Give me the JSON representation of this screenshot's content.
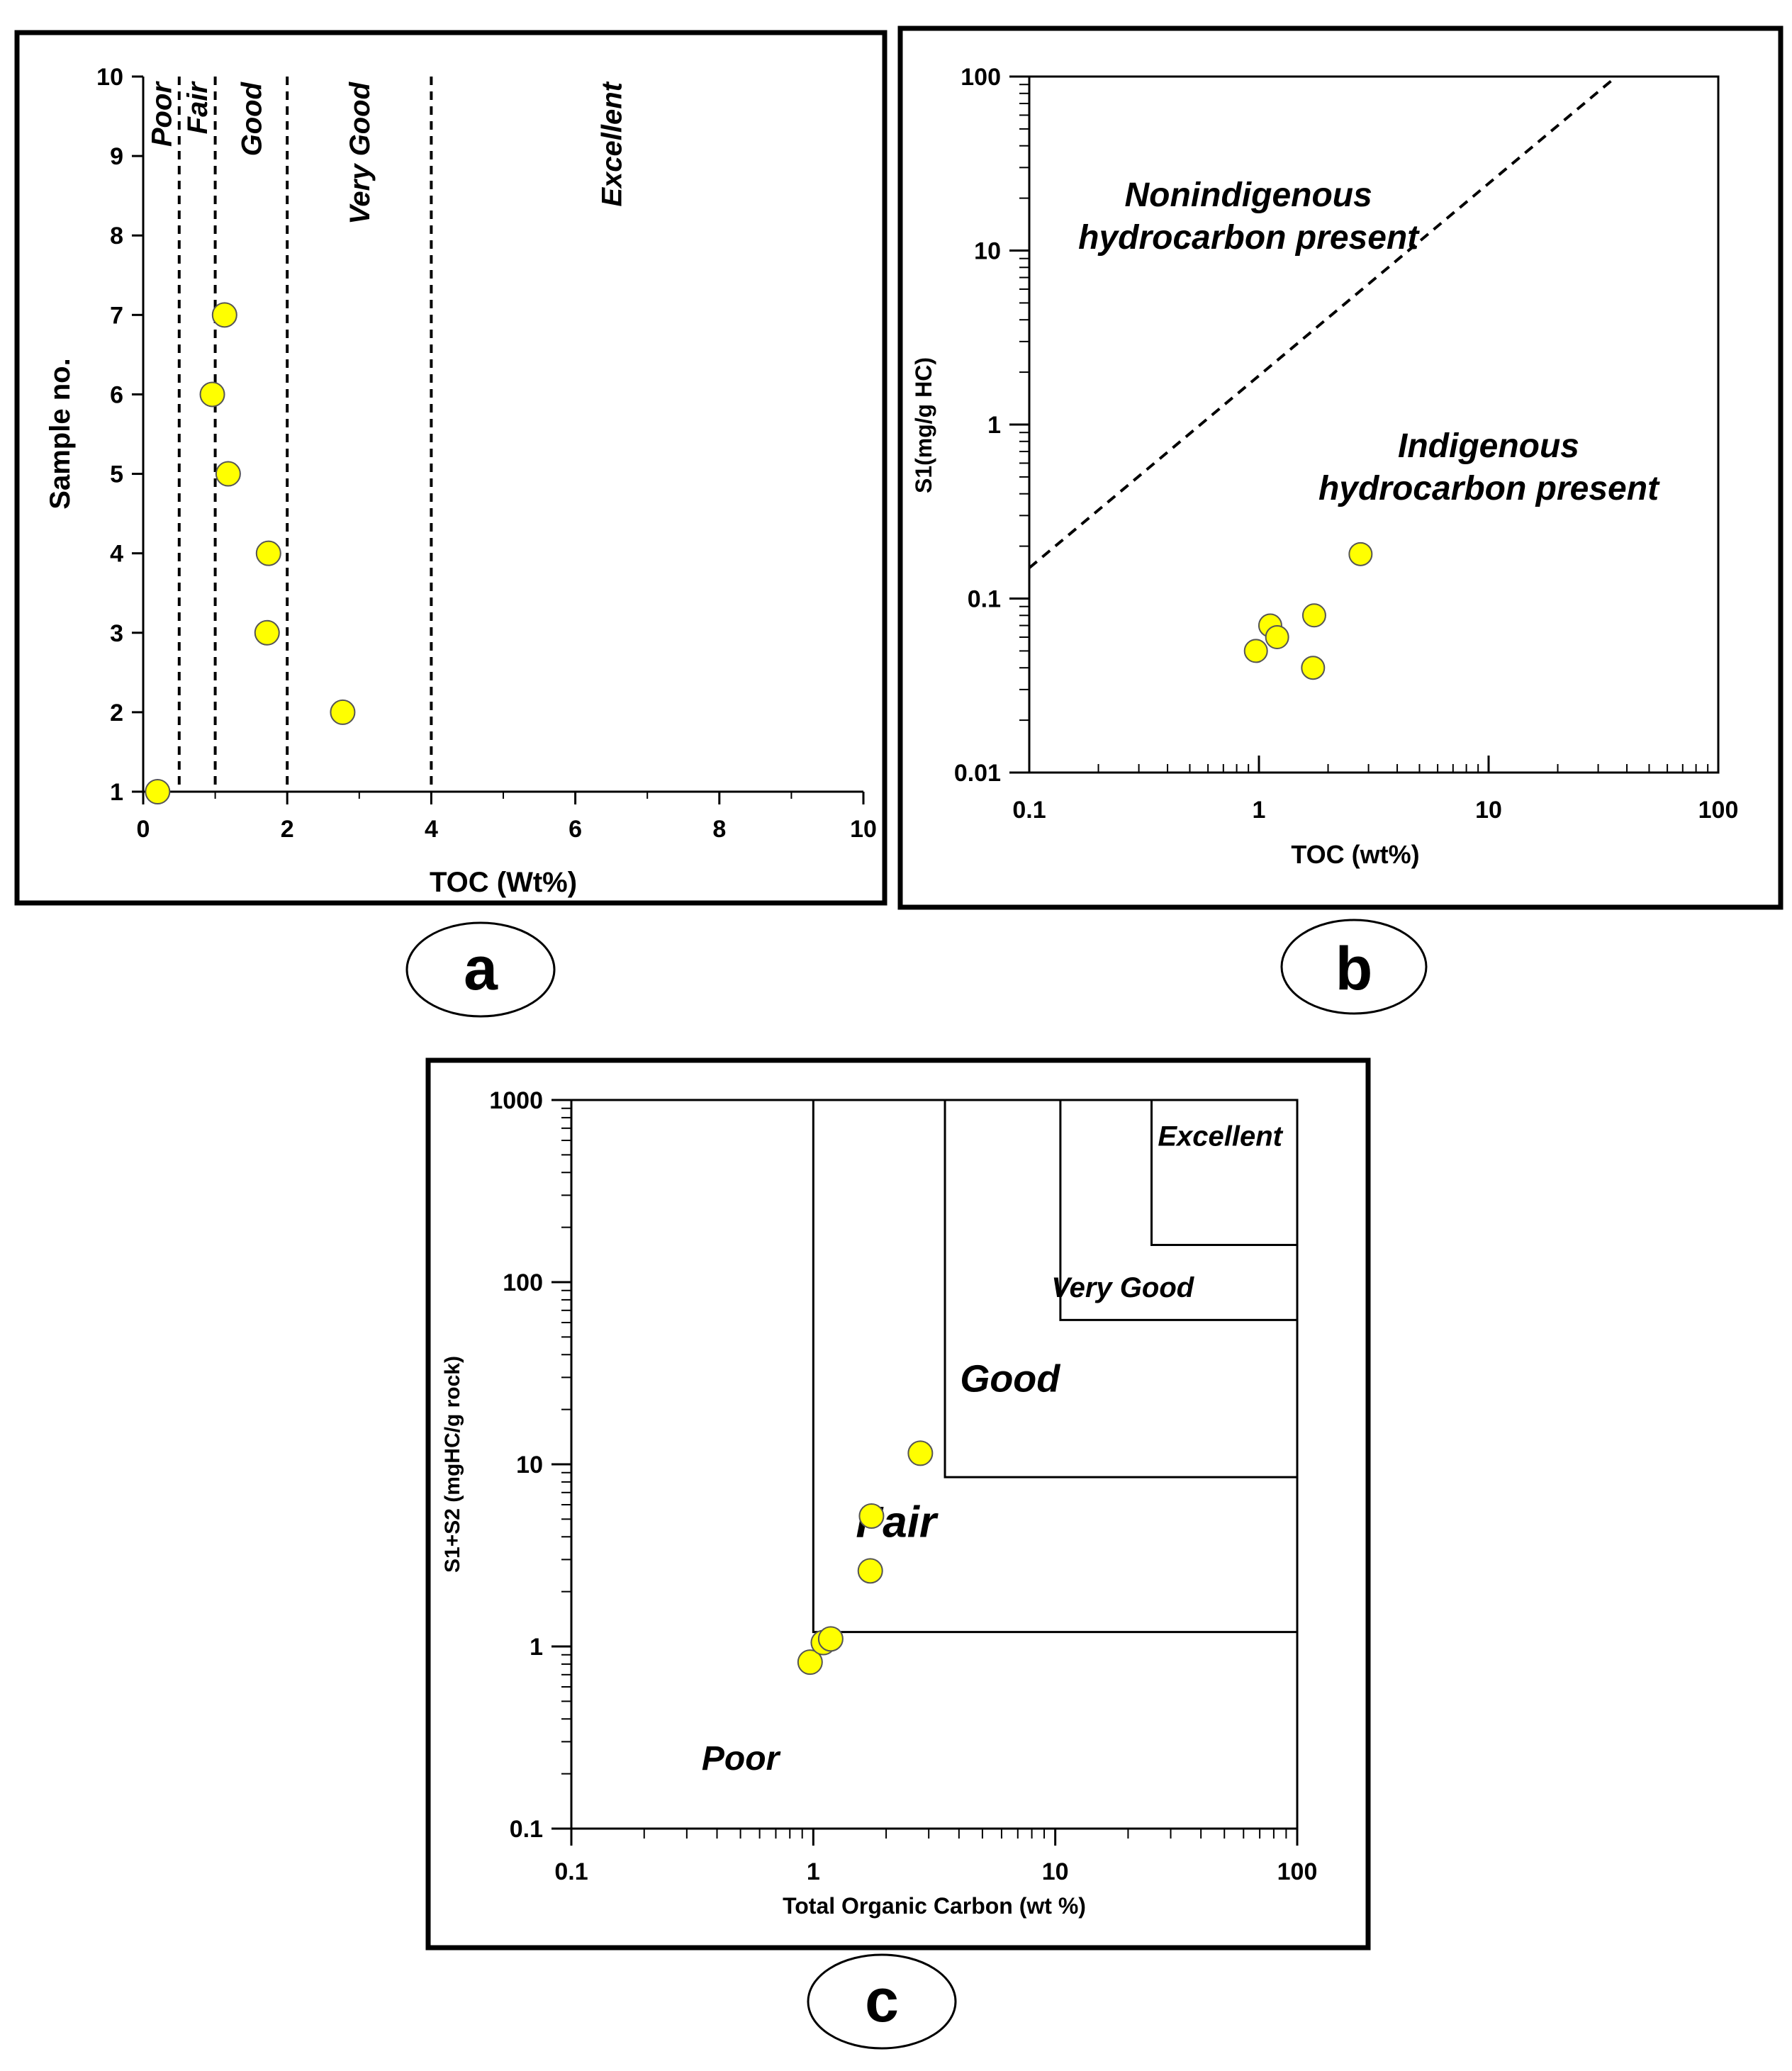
{
  "figure": {
    "panel_labels": [
      "a",
      "b",
      "c"
    ]
  },
  "chart_data": [
    {
      "id": "a",
      "type": "scatter",
      "title": "",
      "xlabel": "TOC (Wt%)",
      "ylabel": "Sample no.",
      "xlim": [
        0,
        10
      ],
      "ylim": [
        1,
        10
      ],
      "x_ticks": [
        "0",
        "2",
        "4",
        "6",
        "8",
        "10"
      ],
      "y_ticks": [
        "1",
        "2",
        "3",
        "4",
        "5",
        "6",
        "7",
        "8",
        "9",
        "10"
      ],
      "grid": false,
      "point_color": "#ffff00",
      "threshold_lines": [
        0.5,
        1,
        2,
        4
      ],
      "zones": [
        {
          "label": "Poor",
          "x": 0.25
        },
        {
          "label": "Fair",
          "x": 0.75
        },
        {
          "label": "Good",
          "x": 1.5
        },
        {
          "label": "Very Good",
          "x": 3
        },
        {
          "label": "Excellent",
          "x": 6.5
        }
      ],
      "points": [
        {
          "x": 0.2,
          "y": 1
        },
        {
          "x": 2.77,
          "y": 2
        },
        {
          "x": 1.72,
          "y": 3
        },
        {
          "x": 1.74,
          "y": 4
        },
        {
          "x": 1.18,
          "y": 5
        },
        {
          "x": 0.96,
          "y": 6
        },
        {
          "x": 1.13,
          "y": 7
        }
      ]
    },
    {
      "id": "b",
      "type": "scatter",
      "title": "",
      "xlabel": "TOC (wt%)",
      "ylabel": "S1(mg/g HC)",
      "xscale": "log",
      "yscale": "log",
      "xlim": [
        0.1,
        100
      ],
      "ylim": [
        0.01,
        100
      ],
      "x_ticks": [
        "0.1",
        "1",
        "10",
        "100"
      ],
      "y_ticks": [
        "0.01",
        "0.1",
        "1",
        "10",
        "100"
      ],
      "grid": false,
      "point_color": "#ffff00",
      "boundary_line": {
        "style": "dashed",
        "from": [
          0.1,
          0.15
        ],
        "to": [
          36,
          100
        ]
      },
      "annotations": [
        {
          "lines": [
            "Nonindigenous",
            "hydrocarbon present"
          ],
          "x": 0.9,
          "y": 18
        },
        {
          "lines": [
            "Indigenous",
            "hydrocarbon present"
          ],
          "x": 10,
          "y": 0.65
        }
      ],
      "points": [
        {
          "x": 0.97,
          "y": 0.05
        },
        {
          "x": 1.12,
          "y": 0.07
        },
        {
          "x": 1.2,
          "y": 0.06
        },
        {
          "x": 1.72,
          "y": 0.04
        },
        {
          "x": 1.74,
          "y": 0.08
        },
        {
          "x": 2.77,
          "y": 0.18
        }
      ]
    },
    {
      "id": "c",
      "type": "scatter",
      "title": "",
      "xlabel": "Total Organic Carbon (wt %)",
      "ylabel": "S1+S2 (mgHC/g rock)",
      "xscale": "log",
      "yscale": "log",
      "xlim": [
        0.1,
        100
      ],
      "ylim": [
        0.1,
        1000
      ],
      "x_ticks": [
        "0.1",
        "1",
        "10",
        "100"
      ],
      "y_ticks": [
        "0.1",
        "1",
        "10",
        "100",
        "1000"
      ],
      "grid": false,
      "point_color": "#ffff00",
      "zones": [
        {
          "label": "Excellent",
          "x0": 25,
          "y0": 160,
          "lx": 48,
          "ly": 560,
          "size": 40
        },
        {
          "label": "Very Good",
          "x0": 10.5,
          "y0": 62,
          "lx": 19,
          "ly": 83,
          "size": 40
        },
        {
          "label": "Good",
          "x0": 3.5,
          "y0": 8.5,
          "lx": 6.5,
          "ly": 25,
          "size": 54
        },
        {
          "label": "Fair",
          "x0": 1,
          "y0": 1.2,
          "lx": 2.2,
          "ly": 4,
          "size": 62
        },
        {
          "label": "Poor",
          "lx": 0.5,
          "ly": 0.21,
          "size": 48
        }
      ],
      "points": [
        {
          "x": 0.97,
          "y": 0.82
        },
        {
          "x": 1.1,
          "y": 1.05
        },
        {
          "x": 1.18,
          "y": 1.1
        },
        {
          "x": 1.72,
          "y": 2.6
        },
        {
          "x": 1.74,
          "y": 5.2
        },
        {
          "x": 2.77,
          "y": 11.5
        }
      ]
    }
  ]
}
